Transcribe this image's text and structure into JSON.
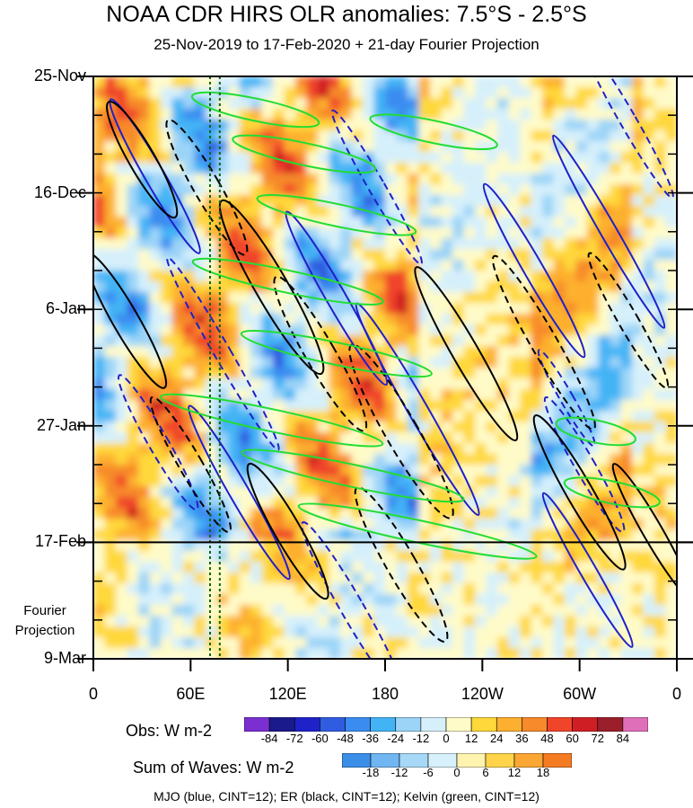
{
  "chart_data": {
    "type": "heatmap",
    "title": "NOAA CDR HIRS OLR anomalies: 7.5°S - 2.5°S",
    "subtitle": "25-Nov-2019 to 17-Feb-2020 + 21-day Fourier Projection",
    "x_ticks": [
      "0",
      "60E",
      "120E",
      "180",
      "120W",
      "60W",
      "0"
    ],
    "x_tick_lon": [
      0,
      60,
      120,
      180,
      240,
      300,
      360
    ],
    "y_ticks": [
      "25-Nov",
      "16-Dec",
      "6-Jan",
      "27-Jan",
      "17-Feb",
      "9-Mar"
    ],
    "y_tick_day": [
      0,
      21,
      42,
      63,
      84,
      105
    ],
    "projection_label": [
      "Fourier",
      "Projection"
    ],
    "obs_end_day": 84,
    "reference_lon": [
      72,
      78
    ],
    "obs_colorbar": {
      "title": "Obs: W m-2",
      "labels": [
        "-84",
        "-72",
        "-60",
        "-48",
        "-36",
        "-24",
        "-12",
        "0",
        "12",
        "24",
        "36",
        "48",
        "60",
        "72",
        "84"
      ],
      "colors": [
        "#7b2fd0",
        "#1a1a8c",
        "#1f22c8",
        "#2f5ce0",
        "#3a8cf0",
        "#42b4f5",
        "#9cd4f8",
        "#d6f0fb",
        "#fffbc8",
        "#ffd83a",
        "#fdb02f",
        "#f78a2a",
        "#f0452a",
        "#cf1f24",
        "#9a1f2a",
        "#e06fba"
      ]
    },
    "waves_colorbar": {
      "title": "Sum of Waves: W m-2",
      "labels": [
        "-18",
        "-12",
        "-6",
        "0",
        "6",
        "12",
        "18"
      ],
      "colors": [
        "#3b8ee8",
        "#6fb6f3",
        "#a8d8f7",
        "#d8f0fb",
        "#fff3b0",
        "#ffd44a",
        "#fca733",
        "#f57b23"
      ]
    },
    "footer": "MJO (blue, CINT=12); ER (black, CINT=12); Kelvin (green, CINT=12)",
    "series": [
      {
        "name": "MJO (blue, CINT=12)",
        "color": "#2020c8",
        "contours": [
          [
            38,
            18,
            6,
            16
          ],
          [
            80,
            50,
            5,
            20
          ],
          [
            150,
            40,
            6,
            18
          ],
          [
            175,
            20,
            5,
            16
          ],
          [
            200,
            60,
            6,
            22
          ],
          [
            40,
            66,
            6,
            14
          ],
          [
            90,
            75,
            6,
            18
          ],
          [
            160,
            96,
            7,
            18
          ],
          [
            272,
            35,
            6,
            18
          ],
          [
            303,
            70,
            6,
            14
          ],
          [
            318,
            28,
            5,
            20
          ],
          [
            330,
            8,
            5,
            16
          ],
          [
            305,
            89,
            5,
            16
          ],
          [
            292,
            58,
            4,
            10
          ]
        ]
      },
      {
        "name": "ER (black, CINT=12)",
        "color": "#000000",
        "contours": [
          [
            30,
            15,
            8,
            12
          ],
          [
            70,
            20,
            8,
            14
          ],
          [
            110,
            38,
            10,
            18
          ],
          [
            140,
            50,
            9,
            16
          ],
          [
            20,
            44,
            8,
            14
          ],
          [
            190,
            64,
            10,
            18
          ],
          [
            230,
            50,
            8,
            18
          ],
          [
            60,
            70,
            7,
            14
          ],
          [
            120,
            82,
            8,
            14
          ],
          [
            190,
            88,
            9,
            16
          ],
          [
            300,
            75,
            8,
            16
          ],
          [
            330,
            44,
            6,
            14
          ],
          [
            345,
            82,
            6,
            14
          ],
          [
            278,
            48,
            8,
            18
          ]
        ]
      },
      {
        "name": "Kelvin (green, CINT=12)",
        "color": "#22dd33",
        "contours": [
          [
            100,
            6,
            40,
            2
          ],
          [
            130,
            14,
            45,
            2
          ],
          [
            150,
            25,
            50,
            2
          ],
          [
            120,
            37,
            60,
            2
          ],
          [
            150,
            50,
            60,
            2
          ],
          [
            110,
            62,
            70,
            2
          ],
          [
            160,
            72,
            70,
            2
          ],
          [
            200,
            82,
            75,
            2
          ],
          [
            310,
            64,
            25,
            2
          ],
          [
            320,
            75,
            30,
            2
          ],
          [
            210,
            10,
            40,
            2
          ]
        ]
      }
    ]
  }
}
